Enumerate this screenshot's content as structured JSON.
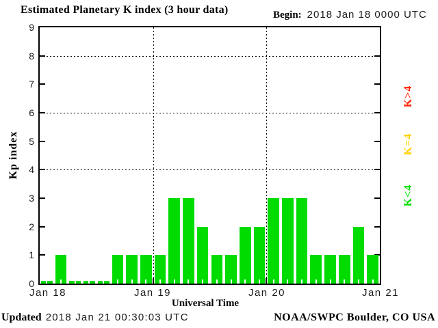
{
  "title": "Estimated Planetary K index (3 hour data)",
  "begin_label": "Begin:",
  "begin_value": "2018 Jan 18 0000 UTC",
  "footer": {
    "updated_label": "Updated",
    "updated_value": "2018 Jan 21 00:30:03 UTC",
    "source": "NOAA/SWPC Boulder, CO USA"
  },
  "chart_data": {
    "type": "bar",
    "title": "Estimated Planetary K index (3 hour data)",
    "xlabel": "Universal Time",
    "ylabel": "Kp index",
    "ylim": [
      0,
      9
    ],
    "yticks": [
      0,
      1,
      2,
      3,
      4,
      5,
      6,
      7,
      8,
      9
    ],
    "grid_y_dotted": [
      4,
      6,
      8
    ],
    "grid_x_dotted_labels": [
      "Jan 19",
      "Jan 20"
    ],
    "interval_hours": 3,
    "x_day_labels": [
      "Jan 18",
      "Jan 19",
      "Jan 20",
      "Jan 21"
    ],
    "x_range_utc": [
      "2018 Jan 18 0000 UTC",
      "2018 Jan 21 0000 UTC"
    ],
    "values": [
      0,
      1,
      0,
      0,
      0,
      1,
      1,
      1,
      1,
      3,
      3,
      2,
      1,
      1,
      2,
      2,
      3,
      3,
      3,
      1,
      1,
      1,
      2,
      1
    ],
    "series_note": "24 three-hour Kp values, 8 per day for Jan 18, Jan 19, Jan 20",
    "bar_color": "#00DC00",
    "legend_position": "right",
    "legend": [
      {
        "label": "K>4",
        "color": "#FF2200"
      },
      {
        "label": "K=4",
        "color": "#FFD200"
      },
      {
        "label": "K<4",
        "color": "#00DC00"
      }
    ]
  }
}
